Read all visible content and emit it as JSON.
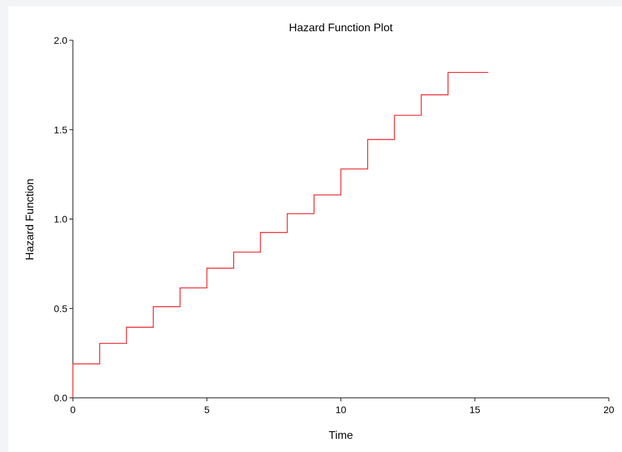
{
  "chart_data": {
    "type": "line",
    "step": true,
    "title": "Hazard Function Plot",
    "xlabel": "Time",
    "ylabel": "Hazard Function",
    "xlim": [
      0,
      20
    ],
    "ylim": [
      0,
      2.0
    ],
    "x_ticks": [
      "0",
      "5",
      "10",
      "15",
      "20"
    ],
    "y_ticks": [
      "0.0",
      "0.5",
      "1.0",
      "1.5",
      "2.0"
    ],
    "x_tick_values": [
      0,
      5,
      10,
      15,
      20
    ],
    "y_tick_values": [
      0,
      0.5,
      1.0,
      1.5,
      2.0
    ],
    "grid": false,
    "line_color": "#e8262b",
    "series": [
      {
        "x": [
          0,
          0,
          1,
          2,
          3,
          4,
          5,
          6,
          7,
          8,
          9,
          10,
          11,
          12,
          13,
          14,
          15.5
        ],
        "y": [
          0,
          0.19,
          0.305,
          0.395,
          0.51,
          0.615,
          0.725,
          0.815,
          0.925,
          1.03,
          1.135,
          1.28,
          1.445,
          1.58,
          1.695,
          1.82,
          1.82
        ]
      }
    ]
  }
}
